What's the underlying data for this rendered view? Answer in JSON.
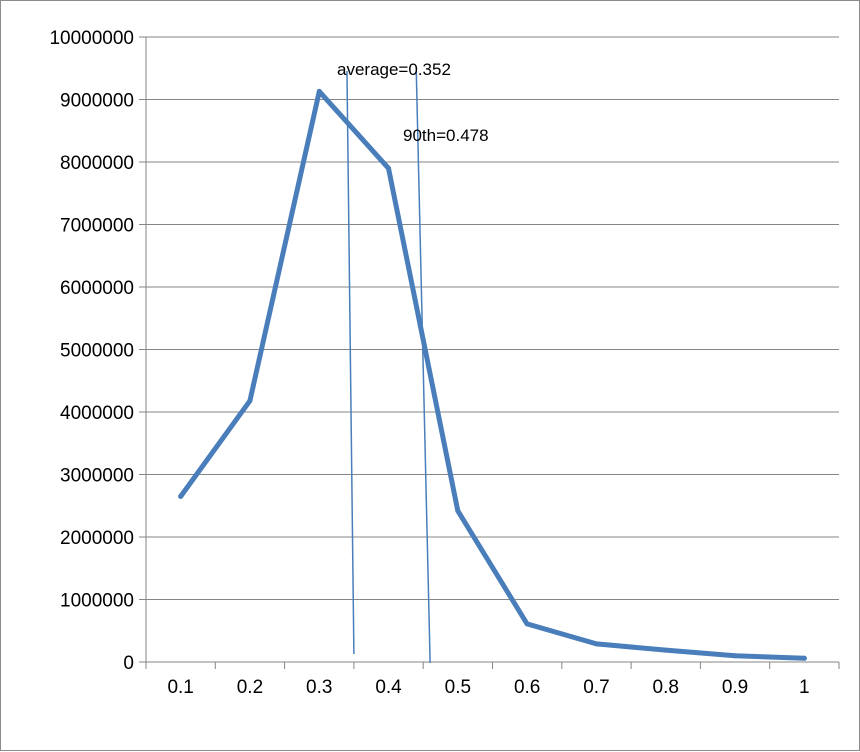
{
  "chart_data": {
    "type": "line",
    "title": "",
    "xlabel": "",
    "ylabel": "",
    "x": [
      "0.1",
      "0.2",
      "0.3",
      "0.4",
      "0.5",
      "0.6",
      "0.7",
      "0.8",
      "0.9",
      "1"
    ],
    "series": [
      {
        "values": [
          2650000,
          4180000,
          9130000,
          7900000,
          2420000,
          610000,
          290000,
          190000,
          100000,
          60000
        ],
        "color": "#4a7ebb"
      }
    ],
    "ylim": [
      0,
      10000000
    ],
    "yticks": [
      "0",
      "1000000",
      "2000000",
      "3000000",
      "4000000",
      "5000000",
      "6000000",
      "7000000",
      "8000000",
      "9000000",
      "10000000"
    ],
    "grid": true,
    "legend": "none",
    "annotations": [
      {
        "label": "average=0.352",
        "x_top": 0.34,
        "x_bottom": 0.35
      },
      {
        "label": "90th=0.478",
        "x_top": 0.44,
        "x_bottom": 0.46
      }
    ],
    "colors": {
      "series": "#4a7ebb",
      "grid": "#868686",
      "marker_lines": "#4a7ebb"
    }
  }
}
